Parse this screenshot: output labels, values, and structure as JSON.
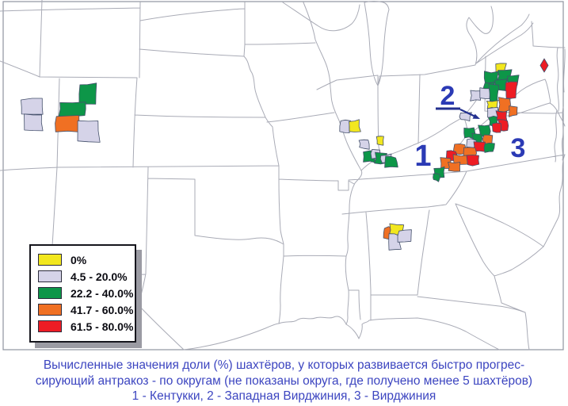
{
  "legend": {
    "items": [
      {
        "label": "0%",
        "color": "#F2E71E"
      },
      {
        "label": "4.5 - 20.0%",
        "color": "#D5D3E8"
      },
      {
        "label": "22.2 - 40.0%",
        "color": "#0D9648"
      },
      {
        "label": "41.7 - 60.0%",
        "color": "#F07023"
      },
      {
        "label": "61.5 - 80.0%",
        "color": "#ED1C24"
      }
    ],
    "no_data_color": "#FFFFFF"
  },
  "region_labels": [
    {
      "text": "1",
      "region": "Kentucky"
    },
    {
      "text": "2",
      "region": "West Virginia"
    },
    {
      "text": "3",
      "region": "Virginia"
    }
  ],
  "caption": {
    "color": "#3C45C0",
    "lines": [
      "Вычисленные значения доли (%) шахтёров, у которых развивается быстро прогрес-",
      "сирующий антракоз - по округам (не показаны округа, где получено менее 5 шахтёров)",
      "1 - Кентукки, 2 - Западная Вирджиния, 3 - Вирджиния"
    ]
  },
  "map": {
    "counties": [
      [
        28,
        125,
        25,
        20,
        1
      ],
      [
        31,
        145,
        22,
        19,
        1
      ],
      [
        100,
        106,
        21,
        25,
        2
      ],
      [
        75,
        129,
        33,
        17,
        2
      ],
      [
        70,
        146,
        31,
        19,
        3
      ],
      [
        98,
        152,
        27,
        26,
        1
      ],
      [
        430,
        151,
        12,
        16,
        1
      ],
      [
        441,
        152,
        13,
        15,
        0
      ],
      [
        454,
        176,
        11,
        11,
        1
      ],
      [
        476,
        171,
        8,
        12,
        0
      ],
      [
        460,
        191,
        14,
        13,
        2
      ],
      [
        469,
        188,
        11,
        11,
        1
      ],
      [
        474,
        193,
        13,
        13,
        2
      ],
      [
        481,
        195,
        12,
        11,
        1
      ],
      [
        486,
        198,
        15,
        13,
        2
      ],
      [
        484,
        287,
        13,
        14,
        3
      ],
      [
        492,
        283,
        17,
        14,
        0
      ],
      [
        491,
        296,
        14,
        18,
        1
      ],
      [
        503,
        290,
        16,
        15,
        1
      ],
      [
        682,
        74,
        10,
        17,
        4,
        "diamond"
      ],
      [
        625,
        80,
        13,
        15,
        0
      ],
      [
        612,
        91,
        16,
        15,
        2
      ],
      [
        629,
        89,
        16,
        14,
        2
      ],
      [
        642,
        95,
        12,
        11,
        2
      ],
      [
        611,
        105,
        13,
        12,
        2
      ],
      [
        625,
        101,
        14,
        13,
        2
      ],
      [
        638,
        104,
        14,
        19,
        4
      ],
      [
        595,
        114,
        11,
        13,
        1
      ],
      [
        606,
        112,
        12,
        12,
        1
      ],
      [
        617,
        107,
        13,
        20,
        2
      ],
      [
        628,
        114,
        11,
        12,
        5
      ],
      [
        615,
        127,
        12,
        9,
        0
      ],
      [
        630,
        124,
        14,
        16,
        3
      ],
      [
        642,
        134,
        10,
        12,
        3
      ],
      [
        616,
        136,
        12,
        11,
        1
      ],
      [
        627,
        141,
        13,
        12,
        4
      ],
      [
        618,
        147,
        10,
        12,
        2
      ],
      [
        630,
        152,
        12,
        13,
        4
      ],
      [
        581,
        143,
        13,
        9,
        1
      ],
      [
        621,
        155,
        11,
        12,
        4
      ],
      [
        605,
        159,
        13,
        13,
        2
      ],
      [
        610,
        170,
        12,
        12,
        3
      ],
      [
        585,
        162,
        14,
        12,
        2
      ],
      [
        596,
        168,
        12,
        12,
        2
      ],
      [
        589,
        176,
        11,
        10,
        1
      ],
      [
        598,
        178,
        14,
        13,
        4
      ],
      [
        612,
        181,
        11,
        11,
        2
      ],
      [
        573,
        182,
        14,
        12,
        3
      ],
      [
        586,
        187,
        15,
        12,
        3
      ],
      [
        563,
        190,
        13,
        12,
        4
      ],
      [
        573,
        196,
        17,
        12,
        3
      ],
      [
        589,
        196,
        15,
        12,
        4
      ],
      [
        556,
        200,
        12,
        12,
        3
      ],
      [
        566,
        205,
        15,
        11,
        3
      ],
      [
        549,
        211,
        12,
        12,
        2
      ],
      [
        546,
        220,
        9,
        8,
        2
      ]
    ]
  }
}
